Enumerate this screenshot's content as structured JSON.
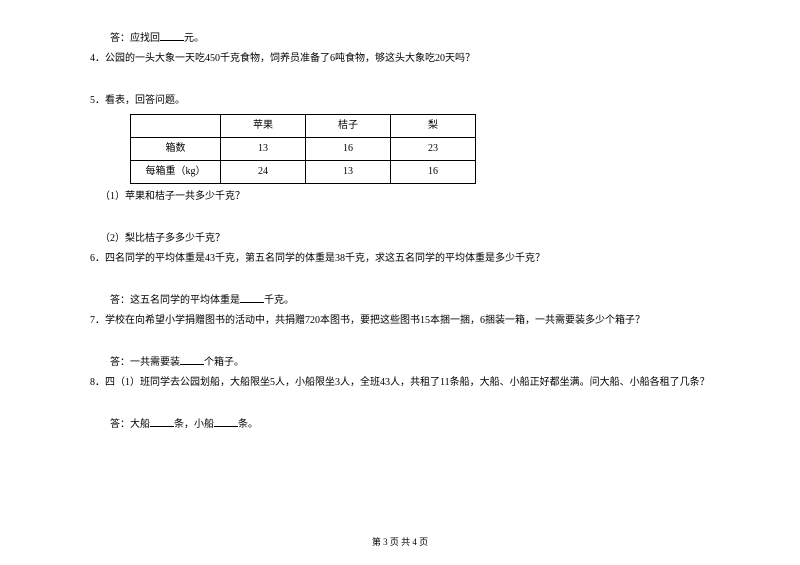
{
  "q3_answer_prefix": "答：应找回",
  "q3_answer_suffix": "元。",
  "q4": "4．公园的一头大象一天吃450千克食物，饲养员准备了6吨食物，够这头大象吃20天吗？",
  "q5_title": "5．看表，回答问题。",
  "table": {
    "headers": [
      "",
      "苹果",
      "桔子",
      "梨"
    ],
    "rows": [
      [
        "箱数",
        "13",
        "16",
        "23"
      ],
      [
        "每箱重（kg）",
        "24",
        "13",
        "16"
      ]
    ]
  },
  "q5_1": "（1）苹果和桔子一共多少千克？",
  "q5_2": "（2）梨比桔子多多少千克？",
  "q6": "6．四名同学的平均体重是43千克，第五名同学的体重是38千克，求这五名同学的平均体重是多少千克？",
  "q6_answer_prefix": "答：这五名同学的平均体重是",
  "q6_answer_suffix": "千克。",
  "q7": "7．学校在向希望小学捐赠图书的活动中，共捐赠720本图书，要把这些图书15本捆一捆，6捆装一箱，一共需要装多少个箱子？",
  "q7_answer_prefix": "答：一共需要装",
  "q7_answer_suffix": "个箱子。",
  "q8": "8．四（1）班同学去公园划船，大船限坐5人，小船限坐3人，全班43人，共租了11条船，大船、小船正好都坐满。问大船、小船各租了几条？",
  "q8_a1_prefix": "答：大船",
  "q8_a1_suffix": "条，小船",
  "q8_a2_suffix": "条。",
  "footer": "第 3 页 共 4 页"
}
